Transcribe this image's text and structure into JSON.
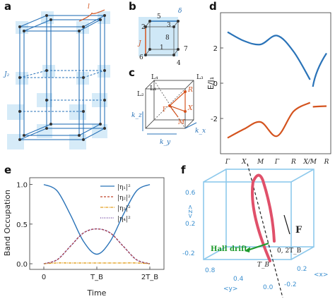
{
  "panels": {
    "a": {
      "label": "a",
      "J2": "J₂",
      "l": "l"
    },
    "b": {
      "label": "b",
      "delta": "δ",
      "J": "J",
      "sites": [
        "1",
        "2",
        "3",
        "4",
        "5",
        "6",
        "7",
        "8"
      ]
    },
    "c": {
      "label": "c",
      "points": [
        "L₁",
        "L₂",
        "L₃",
        "L₄",
        "R",
        "X",
        "M",
        "Γ"
      ],
      "axes": {
        "kz": "k_z",
        "ky": "k_y",
        "kx": "k_x"
      }
    },
    "d": {
      "label": "d",
      "ylabel": "E/J₁",
      "xticks": [
        "Γ",
        "X",
        "M",
        "Γ",
        "R",
        "X/M",
        "R"
      ],
      "yticks": [
        "2",
        "0",
        "-2"
      ],
      "colors": {
        "upper": "#2a73b8",
        "lower": "#d4531e"
      }
    },
    "e": {
      "label": "e",
      "ylabel": "Band Occupation",
      "xlabel": "Time",
      "xticks": [
        "0",
        "T_B",
        "2T_B"
      ],
      "yticks": [
        "1.0",
        "0.5",
        "0.0"
      ],
      "legend": [
        "|η₁|²",
        "|η₂|²",
        "|η₃|²",
        "|η₄|²"
      ],
      "colors": {
        "eta1": "#2a73b8",
        "eta2": "#c0442a",
        "eta3": "#e3a020",
        "eta4": "#6a3d9a"
      }
    },
    "f": {
      "label": "f",
      "F": "F",
      "hall": "Hall drift",
      "TB": "T_B",
      "zero": "0, 2T_B",
      "z_axis": "<z>",
      "y_axis": "<y>",
      "x_axis": "<x>",
      "z_ticks": [
        "0.6",
        "0.2",
        "-0.2"
      ],
      "y_ticks": [
        "0.8",
        "0.4",
        "0.0"
      ],
      "x_ticks": [
        "0.2",
        "-0.2"
      ],
      "colors": {
        "cube": "#8ec9ec",
        "traj": "#e0506a",
        "hall": "#1e9a2c"
      }
    }
  },
  "chart_data": [
    {
      "type": "line",
      "panel": "d",
      "ylabel": "E/J₁",
      "xticks": [
        "Γ",
        "X",
        "M",
        "Γ",
        "R",
        "X/M",
        "R"
      ],
      "ylim": [
        -4,
        4
      ],
      "series": [
        {
          "values": [
            2.9,
            2.4,
            2.2,
            2.7,
            1.8,
            0.2,
            1.7
          ]
        },
        {
          "values": [
            -3.1,
            -2.6,
            -2.2,
            -3.0,
            -1.6,
            -1.1,
            -1.3
          ]
        }
      ]
    },
    {
      "type": "line",
      "panel": "e",
      "ylabel": "Band Occupation",
      "xlabel": "Time",
      "xticks": [
        "0",
        "T_B",
        "2T_B"
      ],
      "ylim": [
        0,
        1.05
      ],
      "x": [
        0,
        0.25,
        0.5,
        0.75,
        1.0,
        1.25,
        1.5,
        1.75,
        2.0
      ],
      "series": [
        {
          "name": "|η₁|²",
          "values": [
            1.0,
            0.92,
            0.62,
            0.28,
            0.12,
            0.28,
            0.62,
            0.92,
            1.0
          ]
        },
        {
          "name": "|η₂|²",
          "values": [
            0.0,
            0.05,
            0.22,
            0.39,
            0.44,
            0.39,
            0.22,
            0.05,
            0.0
          ]
        },
        {
          "name": "|η₃|²",
          "values": [
            0.0,
            0.01,
            0.01,
            0.01,
            0.01,
            0.01,
            0.01,
            0.01,
            0.0
          ]
        },
        {
          "name": "|η₄|²",
          "values": [
            0.0,
            0.05,
            0.22,
            0.39,
            0.44,
            0.39,
            0.22,
            0.05,
            0.0
          ]
        }
      ]
    }
  ]
}
